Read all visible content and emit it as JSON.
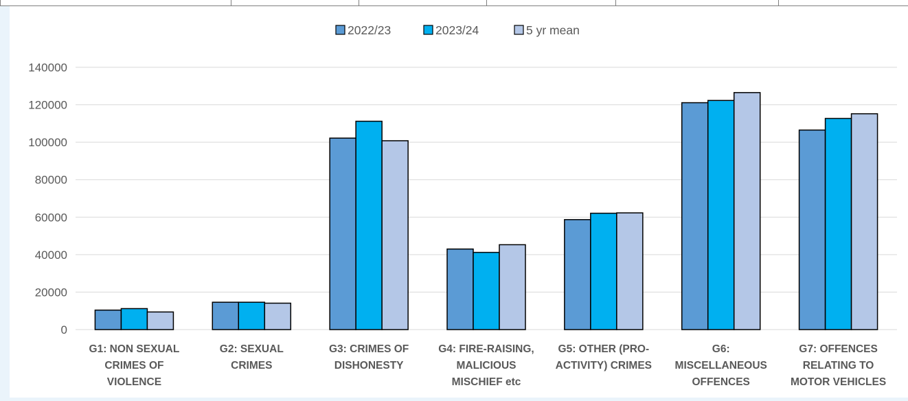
{
  "chart_data": {
    "type": "bar",
    "categories": [
      [
        "G1:  NON SEXUAL",
        "CRIMES OF",
        "VIOLENCE"
      ],
      [
        "G2:  SEXUAL",
        "CRIMES"
      ],
      [
        "G3:  CRIMES OF",
        "DISHONESTY"
      ],
      [
        "G4:  FIRE-RAISING,",
        "MALICIOUS",
        "MISCHIEF etc"
      ],
      [
        "G5:  OTHER (PRO-",
        "ACTIVITY) CRIMES"
      ],
      [
        "G6:",
        "MISCELLANEOUS",
        "OFFENCES"
      ],
      [
        "G7:  OFFENCES",
        "RELATING TO",
        "MOTOR VEHICLES"
      ]
    ],
    "series": [
      {
        "name": "2022/23",
        "color": "#5b9bd5",
        "values": [
          10400,
          14600,
          102200,
          43000,
          58700,
          121100,
          106500
        ]
      },
      {
        "name": "2023/24",
        "color": "#00b0f0",
        "values": [
          11200,
          14600,
          111200,
          41200,
          62100,
          122300,
          112700
        ]
      },
      {
        "name": "5 yr mean",
        "color": "#b4c7e7",
        "values": [
          9400,
          14100,
          100800,
          45300,
          62300,
          126500,
          115200
        ]
      }
    ],
    "ylim": [
      0,
      140000
    ],
    "yticks": [
      0,
      20000,
      40000,
      60000,
      80000,
      100000,
      120000,
      140000
    ],
    "grid": true,
    "legend_position": "top-center"
  }
}
